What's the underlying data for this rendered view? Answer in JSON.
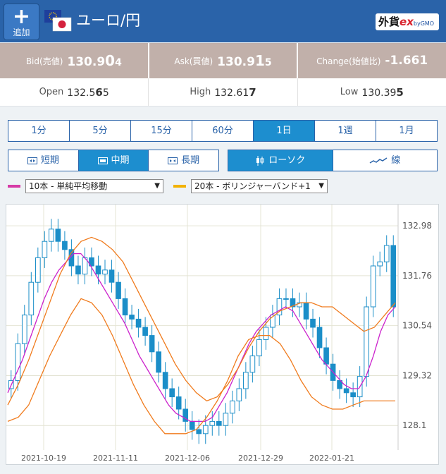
{
  "header": {
    "add_label": "追加",
    "pair_title": "ユーロ/円",
    "logo_text": "外貨",
    "logo_ex": "ex",
    "logo_sub": "byGMO",
    "flag_icons": [
      "eu-flag-icon",
      "jp-flag-icon"
    ]
  },
  "quotes": {
    "bid": {
      "label": "Bid(売値)",
      "pre": "130.9",
      "big": "0",
      "post": "4"
    },
    "ask": {
      "label": "Ask(買値)",
      "pre": "130.9",
      "big": "1",
      "post": "5"
    },
    "change": {
      "label": "Change(始値比)",
      "value": "-1.661"
    }
  },
  "ranges": {
    "open": {
      "label": "Open",
      "pre": "132.5",
      "big": "6",
      "post": "5"
    },
    "high": {
      "label": "High",
      "pre": "132.61",
      "big": "7",
      "post": ""
    },
    "low": {
      "label": "Low",
      "pre": "130.39",
      "big": "5",
      "post": ""
    }
  },
  "timeframes": [
    "1分",
    "5分",
    "15分",
    "60分",
    "1日",
    "1週",
    "1月"
  ],
  "active_timeframe": "1日",
  "terms": [
    "短期",
    "中期",
    "長期"
  ],
  "active_term": "中期",
  "chart_types": [
    "ローソク",
    "線"
  ],
  "active_chart_type": "ローソク",
  "indicators": {
    "ma": {
      "value": "10本 - 単純平均移動",
      "color": "#d63aa6"
    },
    "bb": {
      "value": "20本 - ボリンジャーバンド+1",
      "color": "#f2b200"
    }
  },
  "colors": {
    "accent": "#2a63a9",
    "active": "#1d8ecf",
    "candle": "#1b8ec8",
    "ma_line": "#cc22cc",
    "bb_line": "#f07b1d",
    "quote_bar": "#c1b0aa"
  },
  "chart_data": {
    "type": "candlestick",
    "title": "",
    "y_ticks": [
      "132.98",
      "131.76",
      "130.54",
      "129.32",
      "128.1"
    ],
    "x_ticks": [
      "2021-10-19",
      "2021-11-11",
      "2021-12-06",
      "2021-12-29",
      "2022-01-21"
    ],
    "ylim": [
      127.5,
      133.5
    ],
    "grid": true,
    "close": [
      129.2,
      130.1,
      130.8,
      131.6,
      132.2,
      132.6,
      132.9,
      132.6,
      132.4,
      132.0,
      131.8,
      132.2,
      132.0,
      131.8,
      131.9,
      131.6,
      131.2,
      130.8,
      130.7,
      130.5,
      130.3,
      129.9,
      129.4,
      129.0,
      128.8,
      128.5,
      128.2,
      128.0,
      127.9,
      128.1,
      128.2,
      128.1,
      128.4,
      128.7,
      129.0,
      129.4,
      129.8,
      130.2,
      130.5,
      130.8,
      131.2,
      131.2,
      131.0,
      131.1,
      130.7,
      130.5,
      130.0,
      129.6,
      129.2,
      129.0,
      128.9,
      128.8,
      129.3,
      131.0,
      132.0,
      132.1,
      132.5,
      131.0
    ],
    "ma10": [
      128.9,
      129.3,
      129.7,
      130.2,
      130.7,
      131.2,
      131.6,
      131.9,
      132.1,
      132.3,
      132.3,
      132.1,
      131.8,
      131.5,
      131.2,
      130.9,
      130.6,
      130.2,
      129.8,
      129.5,
      129.2,
      128.9,
      128.6,
      128.4,
      128.3,
      128.2,
      128.2,
      128.2,
      128.3,
      128.6,
      128.9,
      129.3,
      129.7,
      130.1,
      130.4,
      130.6,
      130.8,
      130.9,
      131.0,
      130.9,
      130.6,
      130.3,
      130.0,
      129.7,
      129.5,
      129.3,
      129.1,
      129.0,
      129.0,
      129.3,
      129.8,
      130.4,
      130.8,
      131.0
    ],
    "bb_upper": [
      128.6,
      129.1,
      129.7,
      130.4,
      131.1,
      131.8,
      132.3,
      132.6,
      132.7,
      132.6,
      132.4,
      132.1,
      131.6,
      131.1,
      130.6,
      130.1,
      129.6,
      129.2,
      128.9,
      128.7,
      128.8,
      129.1,
      129.5,
      130.0,
      130.4,
      130.7,
      130.9,
      131.0,
      131.1,
      131.1,
      131.0,
      131.0,
      130.8,
      130.6,
      130.4,
      130.5,
      130.8,
      131.1
    ],
    "bb_lower": [
      128.2,
      128.3,
      128.6,
      129.2,
      129.8,
      130.3,
      130.8,
      131.2,
      131.1,
      130.8,
      130.3,
      129.7,
      129.1,
      128.6,
      128.2,
      127.9,
      127.9,
      127.9,
      128.0,
      128.3,
      128.7,
      129.2,
      129.8,
      130.2,
      130.3,
      130.3,
      130.1,
      129.7,
      129.2,
      128.8,
      128.6,
      128.5,
      128.5,
      128.6,
      128.7,
      128.7,
      128.7,
      128.7
    ]
  }
}
